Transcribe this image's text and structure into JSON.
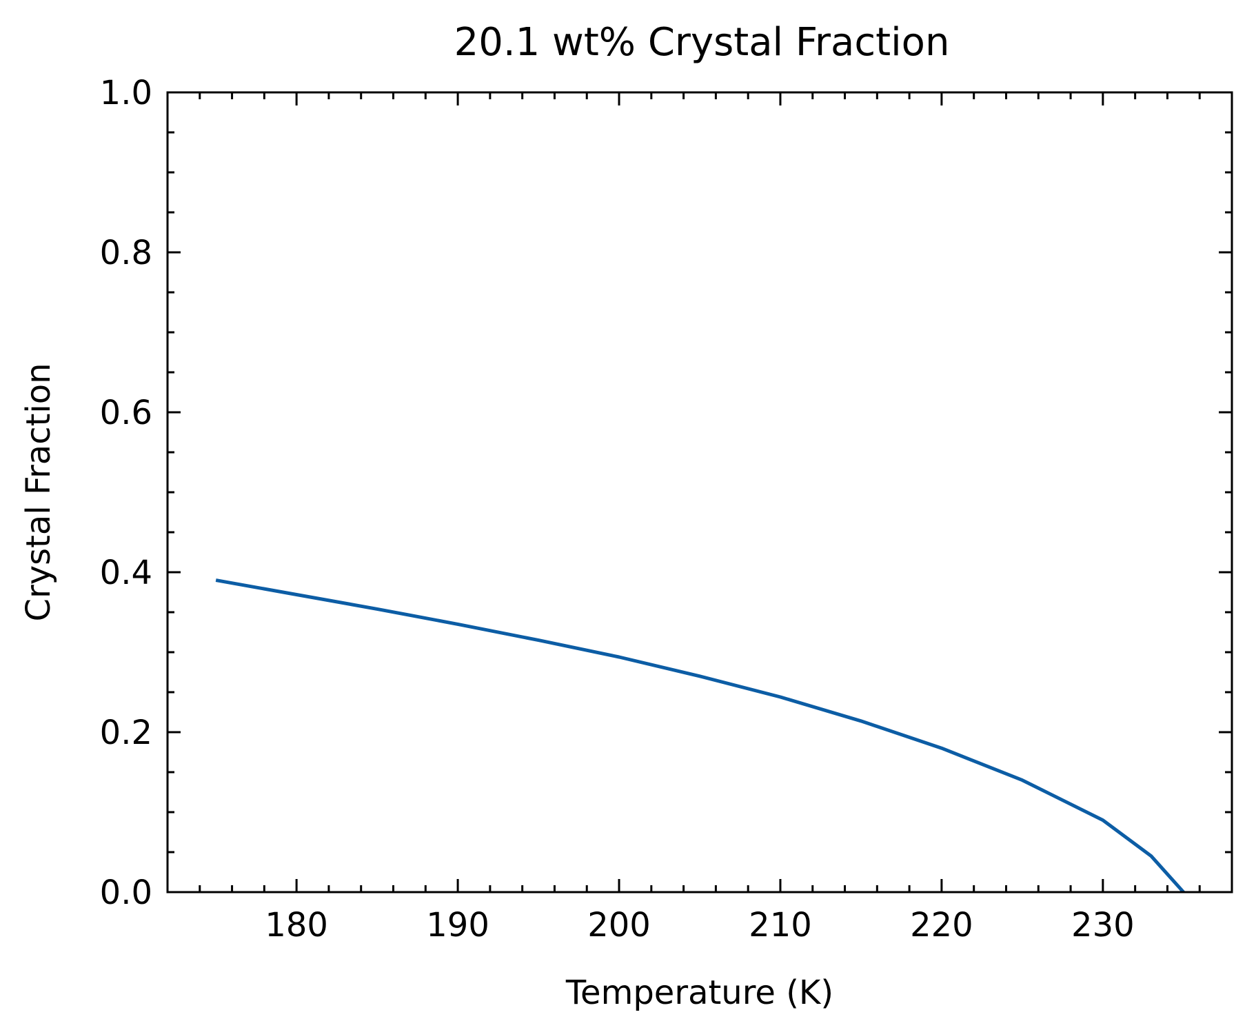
{
  "chart_data": {
    "type": "line",
    "title": "20.1 wt% Crystal Fraction",
    "xlabel": "Temperature (K)",
    "ylabel": "Crystal Fraction",
    "xlim": [
      172,
      238
    ],
    "ylim": [
      0.0,
      1.0
    ],
    "x_ticks": [
      180,
      190,
      200,
      210,
      220,
      230
    ],
    "x_tick_labels": [
      "180",
      "190",
      "200",
      "210",
      "220",
      "230"
    ],
    "x_minor_step": 2,
    "y_ticks": [
      0.0,
      0.2,
      0.4,
      0.6,
      0.8,
      1.0
    ],
    "y_tick_labels": [
      "0.0",
      "0.2",
      "0.4",
      "0.6",
      "0.8",
      "1.0"
    ],
    "y_minor_step": 0.05,
    "grid": false,
    "tick_direction": "in",
    "series": [
      {
        "color": "#0c5da5",
        "x": [
          175,
          180,
          185,
          190,
          195,
          200,
          205,
          210,
          215,
          220,
          225,
          230,
          233,
          235
        ],
        "y": [
          0.39,
          0.372,
          0.354,
          0.335,
          0.315,
          0.294,
          0.27,
          0.244,
          0.214,
          0.18,
          0.14,
          0.09,
          0.045,
          0.0
        ]
      }
    ]
  }
}
